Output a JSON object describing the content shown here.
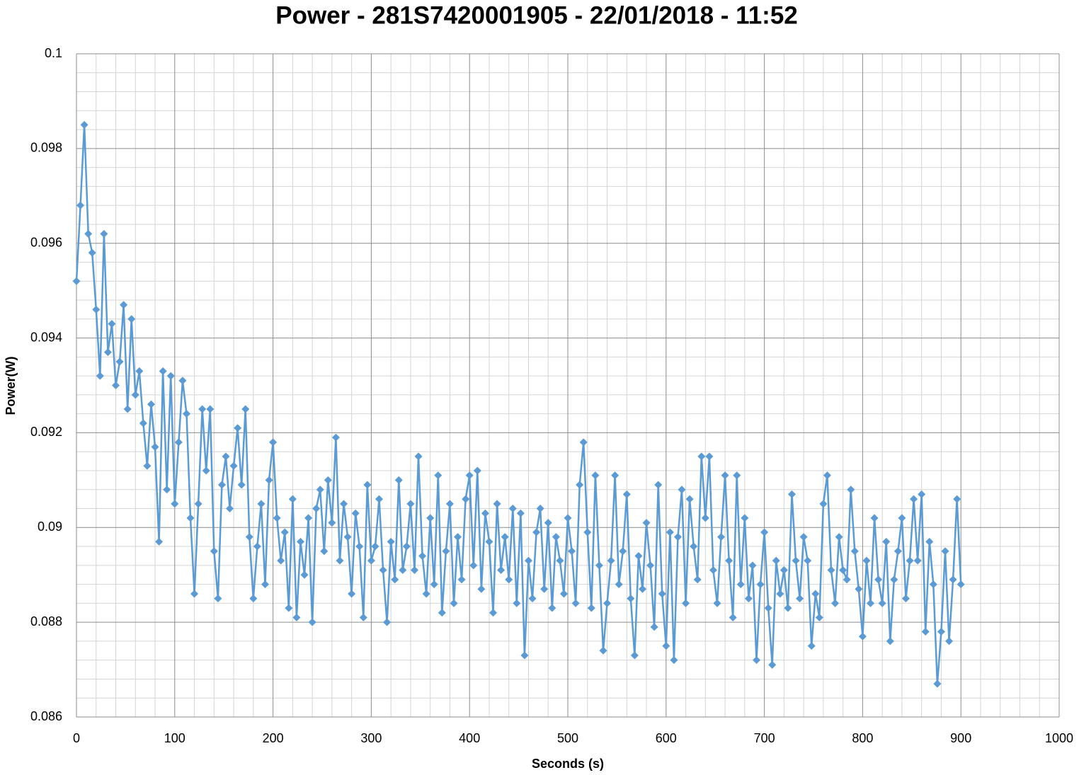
{
  "chart_data": {
    "type": "line",
    "title": "Power - 281S7420001905 - 22/01/2018 - 11:52",
    "x_label": "Seconds (s)",
    "y_label": "Power(W)",
    "xlim": [
      0,
      1000
    ],
    "xticks": [
      0,
      100,
      200,
      300,
      400,
      500,
      600,
      700,
      800,
      900,
      1000
    ],
    "ylim": [
      0.086,
      0.1
    ],
    "yticks": [
      0.086,
      0.088,
      0.09,
      0.092,
      0.094,
      0.096,
      0.098,
      0.1
    ],
    "grid": true,
    "minor_grid": true,
    "marker": "diamond",
    "x": [
      0,
      4,
      8,
      12,
      16,
      20,
      24,
      28,
      32,
      36,
      40,
      44,
      48,
      52,
      56,
      60,
      64,
      68,
      72,
      76,
      80,
      84,
      88,
      92,
      96,
      100,
      104,
      108,
      112,
      116,
      120,
      124,
      128,
      132,
      136,
      140,
      144,
      148,
      152,
      156,
      160,
      164,
      168,
      172,
      176,
      180,
      184,
      188,
      192,
      196,
      200,
      204,
      208,
      212,
      216,
      220,
      224,
      228,
      232,
      236,
      240,
      244,
      248,
      252,
      256,
      260,
      264,
      268,
      272,
      276,
      280,
      284,
      288,
      292,
      296,
      300,
      304,
      308,
      312,
      316,
      320,
      324,
      328,
      332,
      336,
      340,
      344,
      348,
      352,
      356,
      360,
      364,
      368,
      372,
      376,
      380,
      384,
      388,
      392,
      396,
      400,
      404,
      408,
      412,
      416,
      420,
      424,
      428,
      432,
      436,
      440,
      444,
      448,
      452,
      456,
      460,
      464,
      468,
      472,
      476,
      480,
      484,
      488,
      492,
      496,
      500,
      504,
      508,
      512,
      516,
      520,
      524,
      528,
      532,
      536,
      540,
      544,
      548,
      552,
      556,
      560,
      564,
      568,
      572,
      576,
      580,
      584,
      588,
      592,
      596,
      600,
      604,
      608,
      612,
      616,
      620,
      624,
      628,
      632,
      636,
      640,
      644,
      648,
      652,
      656,
      660,
      664,
      668,
      672,
      676,
      680,
      684,
      688,
      692,
      696,
      700,
      704,
      708,
      712,
      716,
      720,
      724,
      728,
      732,
      736,
      740,
      744,
      748,
      752,
      756,
      760,
      764,
      768,
      772,
      776,
      780,
      784,
      788,
      792,
      796,
      800,
      804,
      808,
      812,
      816,
      820,
      824,
      828,
      832,
      836,
      840,
      844,
      848,
      852,
      856,
      860,
      864,
      868,
      872,
      876,
      880,
      884,
      888,
      892,
      896,
      900
    ],
    "series": [
      {
        "name": "Power",
        "color": "#5b9bd5",
        "values": [
          0.0952,
          0.0968,
          0.0985,
          0.0962,
          0.0958,
          0.0946,
          0.0932,
          0.0962,
          0.0937,
          0.0943,
          0.093,
          0.0935,
          0.0947,
          0.0925,
          0.0944,
          0.0928,
          0.0933,
          0.0922,
          0.0913,
          0.0926,
          0.0917,
          0.0897,
          0.0933,
          0.0908,
          0.0932,
          0.0905,
          0.0918,
          0.0931,
          0.0924,
          0.0902,
          0.0886,
          0.0905,
          0.0925,
          0.0912,
          0.0925,
          0.0895,
          0.0885,
          0.0909,
          0.0915,
          0.0904,
          0.0913,
          0.0921,
          0.0909,
          0.0925,
          0.0898,
          0.0885,
          0.0896,
          0.0905,
          0.0888,
          0.091,
          0.0918,
          0.0902,
          0.0893,
          0.0899,
          0.0883,
          0.0906,
          0.0881,
          0.0897,
          0.089,
          0.0902,
          0.088,
          0.0904,
          0.0908,
          0.0895,
          0.091,
          0.0901,
          0.0919,
          0.0893,
          0.0905,
          0.0898,
          0.0886,
          0.0903,
          0.0896,
          0.0881,
          0.0909,
          0.0893,
          0.0896,
          0.0906,
          0.0891,
          0.088,
          0.0897,
          0.0889,
          0.091,
          0.0891,
          0.0896,
          0.0905,
          0.0891,
          0.0915,
          0.0894,
          0.0886,
          0.0902,
          0.0888,
          0.0911,
          0.0882,
          0.0895,
          0.0905,
          0.0884,
          0.0898,
          0.0889,
          0.0906,
          0.0911,
          0.0892,
          0.0912,
          0.0887,
          0.0903,
          0.0897,
          0.0882,
          0.0905,
          0.0891,
          0.0898,
          0.0889,
          0.0904,
          0.0884,
          0.0903,
          0.0873,
          0.0893,
          0.0885,
          0.0899,
          0.0904,
          0.0887,
          0.0901,
          0.0883,
          0.0898,
          0.0893,
          0.0886,
          0.0902,
          0.0895,
          0.0884,
          0.0909,
          0.0918,
          0.0899,
          0.0883,
          0.0911,
          0.0892,
          0.0874,
          0.0884,
          0.0893,
          0.0911,
          0.0888,
          0.0895,
          0.0907,
          0.0885,
          0.0873,
          0.0894,
          0.0887,
          0.0901,
          0.0892,
          0.0879,
          0.0909,
          0.0886,
          0.0875,
          0.0899,
          0.0872,
          0.0898,
          0.0908,
          0.0884,
          0.0906,
          0.0896,
          0.0889,
          0.0915,
          0.0902,
          0.0915,
          0.0891,
          0.0884,
          0.0898,
          0.0911,
          0.0893,
          0.0881,
          0.0911,
          0.0888,
          0.0902,
          0.0885,
          0.0892,
          0.0872,
          0.0888,
          0.0899,
          0.0883,
          0.0871,
          0.0893,
          0.0886,
          0.0891,
          0.0883,
          0.0907,
          0.0893,
          0.0885,
          0.0898,
          0.0893,
          0.0875,
          0.0886,
          0.0881,
          0.0905,
          0.0911,
          0.0891,
          0.0884,
          0.0898,
          0.0891,
          0.0889,
          0.0908,
          0.0895,
          0.0887,
          0.0877,
          0.0893,
          0.0884,
          0.0902,
          0.0889,
          0.0884,
          0.0897,
          0.0876,
          0.0889,
          0.0895,
          0.0902,
          0.0885,
          0.0893,
          0.0906,
          0.0893,
          0.0907,
          0.0878,
          0.0897,
          0.0888,
          0.0867,
          0.0878,
          0.0895,
          0.0876,
          0.0889,
          0.0906,
          0.0888
        ]
      }
    ]
  }
}
